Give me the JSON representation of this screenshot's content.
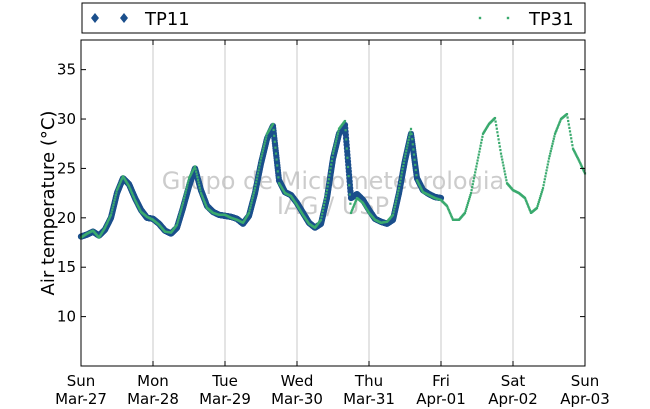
{
  "chart_data": {
    "type": "scatter",
    "ylabel": "Air temperature (°C)",
    "ylim": [
      5,
      38
    ],
    "yticks": [
      10,
      15,
      20,
      25,
      30,
      35
    ],
    "xlim": [
      "2016-03-27",
      "2016-04-03"
    ],
    "xticks": [
      {
        "day": "Sun",
        "date": "Mar-27"
      },
      {
        "day": "Mon",
        "date": "Mar-28"
      },
      {
        "day": "Tue",
        "date": "Mar-29"
      },
      {
        "day": "Wed",
        "date": "Mar-30"
      },
      {
        "day": "Thu",
        "date": "Mar-31"
      },
      {
        "day": "Fri",
        "date": "Apr-01"
      },
      {
        "day": "Sat",
        "date": "Apr-02"
      },
      {
        "day": "Sun",
        "date": "Apr-03"
      }
    ],
    "grid": "vertical",
    "legend_position": "top",
    "watermark": [
      "Grupo de Micrometeorologia",
      "IAG / USP"
    ],
    "series": [
      {
        "name": "TP11",
        "color": "#1b4f8c",
        "marker": "filled-circle",
        "points": [
          [
            "2016-03-27 00:00",
            18.1
          ],
          [
            "2016-03-27 02:00",
            18.3
          ],
          [
            "2016-03-27 04:00",
            18.6
          ],
          [
            "2016-03-27 06:00",
            18.2
          ],
          [
            "2016-03-27 08:00",
            18.8
          ],
          [
            "2016-03-27 10:00",
            20.0
          ],
          [
            "2016-03-27 12:00",
            22.5
          ],
          [
            "2016-03-27 14:00",
            24.0
          ],
          [
            "2016-03-27 16:00",
            23.4
          ],
          [
            "2016-03-27 18:00",
            22.0
          ],
          [
            "2016-03-27 20:00",
            20.8
          ],
          [
            "2016-03-27 22:00",
            20.0
          ],
          [
            "2016-03-28 00:00",
            19.9
          ],
          [
            "2016-03-28 02:00",
            19.4
          ],
          [
            "2016-03-28 04:00",
            18.7
          ],
          [
            "2016-03-28 06:00",
            18.4
          ],
          [
            "2016-03-28 08:00",
            19.0
          ],
          [
            "2016-03-28 10:00",
            21.0
          ],
          [
            "2016-03-28 12:00",
            23.2
          ],
          [
            "2016-03-28 14:00",
            25.0
          ],
          [
            "2016-03-28 16:00",
            22.8
          ],
          [
            "2016-03-28 18:00",
            21.2
          ],
          [
            "2016-03-28 20:00",
            20.6
          ],
          [
            "2016-03-28 22:00",
            20.3
          ],
          [
            "2016-03-29 00:00",
            20.2
          ],
          [
            "2016-03-29 02:00",
            20.1
          ],
          [
            "2016-03-29 04:00",
            19.9
          ],
          [
            "2016-03-29 06:00",
            19.4
          ],
          [
            "2016-03-29 08:00",
            20.2
          ],
          [
            "2016-03-29 10:00",
            22.5
          ],
          [
            "2016-03-29 12:00",
            25.5
          ],
          [
            "2016-03-29 14:00",
            28.0
          ],
          [
            "2016-03-29 16:00",
            29.3
          ],
          [
            "2016-03-29 18:00",
            23.8
          ],
          [
            "2016-03-29 20:00",
            22.6
          ],
          [
            "2016-03-29 22:00",
            22.3
          ],
          [
            "2016-03-30 00:00",
            21.5
          ],
          [
            "2016-03-30 02:00",
            20.5
          ],
          [
            "2016-03-30 04:00",
            19.5
          ],
          [
            "2016-03-30 06:00",
            19.0
          ],
          [
            "2016-03-30 08:00",
            19.4
          ],
          [
            "2016-03-30 10:00",
            22.0
          ],
          [
            "2016-03-30 12:00",
            26.0
          ],
          [
            "2016-03-30 14:00",
            28.5
          ],
          [
            "2016-03-30 16:00",
            29.4
          ],
          [
            "2016-03-30 18:00",
            22.0
          ],
          [
            "2016-03-30 20:00",
            22.4
          ],
          [
            "2016-03-30 22:00",
            21.8
          ],
          [
            "2016-03-31 00:00",
            20.8
          ],
          [
            "2016-03-31 02:00",
            19.9
          ],
          [
            "2016-03-31 04:00",
            19.6
          ],
          [
            "2016-03-31 06:00",
            19.4
          ],
          [
            "2016-03-31 08:00",
            19.8
          ],
          [
            "2016-03-31 10:00",
            22.5
          ],
          [
            "2016-03-31 12:00",
            25.8
          ],
          [
            "2016-03-31 14:00",
            28.5
          ],
          [
            "2016-03-31 16:00",
            24.0
          ],
          [
            "2016-03-31 18:00",
            22.8
          ],
          [
            "2016-03-31 20:00",
            22.4
          ],
          [
            "2016-03-31 22:00",
            22.1
          ],
          [
            "2016-04-01 00:00",
            22.0
          ]
        ]
      },
      {
        "name": "TP31",
        "color": "#3aaa6e",
        "marker": "small-dot",
        "points": [
          [
            "2016-03-27 00:00",
            18.0
          ],
          [
            "2016-03-27 02:00",
            18.4
          ],
          [
            "2016-03-27 04:00",
            18.7
          ],
          [
            "2016-03-27 06:00",
            18.0
          ],
          [
            "2016-03-27 08:00",
            19.0
          ],
          [
            "2016-03-27 10:00",
            20.3
          ],
          [
            "2016-03-27 12:00",
            22.8
          ],
          [
            "2016-03-27 14:00",
            24.2
          ],
          [
            "2016-03-27 16:00",
            23.2
          ],
          [
            "2016-03-27 18:00",
            21.8
          ],
          [
            "2016-03-27 20:00",
            20.6
          ],
          [
            "2016-03-27 22:00",
            20.1
          ],
          [
            "2016-03-28 00:00",
            19.8
          ],
          [
            "2016-03-28 02:00",
            19.3
          ],
          [
            "2016-03-28 04:00",
            18.6
          ],
          [
            "2016-03-28 06:00",
            18.5
          ],
          [
            "2016-03-28 08:00",
            19.3
          ],
          [
            "2016-03-28 10:00",
            21.5
          ],
          [
            "2016-03-28 12:00",
            24.0
          ],
          [
            "2016-03-28 14:00",
            25.2
          ],
          [
            "2016-03-28 16:00",
            22.5
          ],
          [
            "2016-03-28 18:00",
            21.0
          ],
          [
            "2016-03-28 20:00",
            20.5
          ],
          [
            "2016-03-28 22:00",
            20.3
          ],
          [
            "2016-03-29 00:00",
            20.3
          ],
          [
            "2016-03-29 02:00",
            20.0
          ],
          [
            "2016-03-29 04:00",
            19.8
          ],
          [
            "2016-03-29 06:00",
            19.5
          ],
          [
            "2016-03-29 08:00",
            20.5
          ],
          [
            "2016-03-29 10:00",
            23.0
          ],
          [
            "2016-03-29 12:00",
            26.0
          ],
          [
            "2016-03-29 14:00",
            28.5
          ],
          [
            "2016-03-29 16:00",
            29.5
          ],
          [
            "2016-03-29 18:00",
            23.5
          ],
          [
            "2016-03-29 20:00",
            22.5
          ],
          [
            "2016-03-29 22:00",
            22.2
          ],
          [
            "2016-03-30 00:00",
            21.3
          ],
          [
            "2016-03-30 02:00",
            20.3
          ],
          [
            "2016-03-30 04:00",
            19.4
          ],
          [
            "2016-03-30 06:00",
            19.0
          ],
          [
            "2016-03-30 08:00",
            19.8
          ],
          [
            "2016-03-30 10:00",
            22.8
          ],
          [
            "2016-03-30 12:00",
            26.5
          ],
          [
            "2016-03-30 14:00",
            29.0
          ],
          [
            "2016-03-30 16:00",
            29.8
          ],
          [
            "2016-03-30 18:00",
            20.5
          ],
          [
            "2016-03-30 20:00",
            22.0
          ],
          [
            "2016-03-30 22:00",
            21.5
          ],
          [
            "2016-03-31 00:00",
            20.5
          ],
          [
            "2016-03-31 02:00",
            19.8
          ],
          [
            "2016-03-31 04:00",
            19.5
          ],
          [
            "2016-03-31 06:00",
            19.6
          ],
          [
            "2016-03-31 08:00",
            20.3
          ],
          [
            "2016-03-31 10:00",
            23.0
          ],
          [
            "2016-03-31 12:00",
            26.2
          ],
          [
            "2016-03-31 14:00",
            29.0
          ],
          [
            "2016-03-31 16:00",
            23.8
          ],
          [
            "2016-03-31 18:00",
            22.6
          ],
          [
            "2016-03-31 20:00",
            22.3
          ],
          [
            "2016-03-31 22:00",
            22.0
          ],
          [
            "2016-04-01 00:00",
            21.8
          ],
          [
            "2016-04-01 02:00",
            21.2
          ],
          [
            "2016-04-01 04:00",
            19.8
          ],
          [
            "2016-04-01 06:00",
            19.8
          ],
          [
            "2016-04-01 08:00",
            20.5
          ],
          [
            "2016-04-01 10:00",
            22.5
          ],
          [
            "2016-04-01 12:00",
            25.5
          ],
          [
            "2016-04-01 14:00",
            28.5
          ],
          [
            "2016-04-01 16:00",
            29.5
          ],
          [
            "2016-04-01 18:00",
            30.1
          ],
          [
            "2016-04-01 20:00",
            26.5
          ],
          [
            "2016-04-01 22:00",
            23.5
          ],
          [
            "2016-04-02 00:00",
            22.8
          ],
          [
            "2016-04-02 02:00",
            22.5
          ],
          [
            "2016-04-02 04:00",
            22.0
          ],
          [
            "2016-04-02 06:00",
            20.5
          ],
          [
            "2016-04-02 08:00",
            21.0
          ],
          [
            "2016-04-02 10:00",
            23.0
          ],
          [
            "2016-04-02 12:00",
            26.0
          ],
          [
            "2016-04-02 14:00",
            28.5
          ],
          [
            "2016-04-02 16:00",
            30.0
          ],
          [
            "2016-04-02 18:00",
            30.5
          ],
          [
            "2016-04-02 20:00",
            27.0
          ],
          [
            "2016-04-02 22:00",
            25.8
          ],
          [
            "2016-04-03 00:00",
            24.5
          ]
        ]
      }
    ]
  }
}
